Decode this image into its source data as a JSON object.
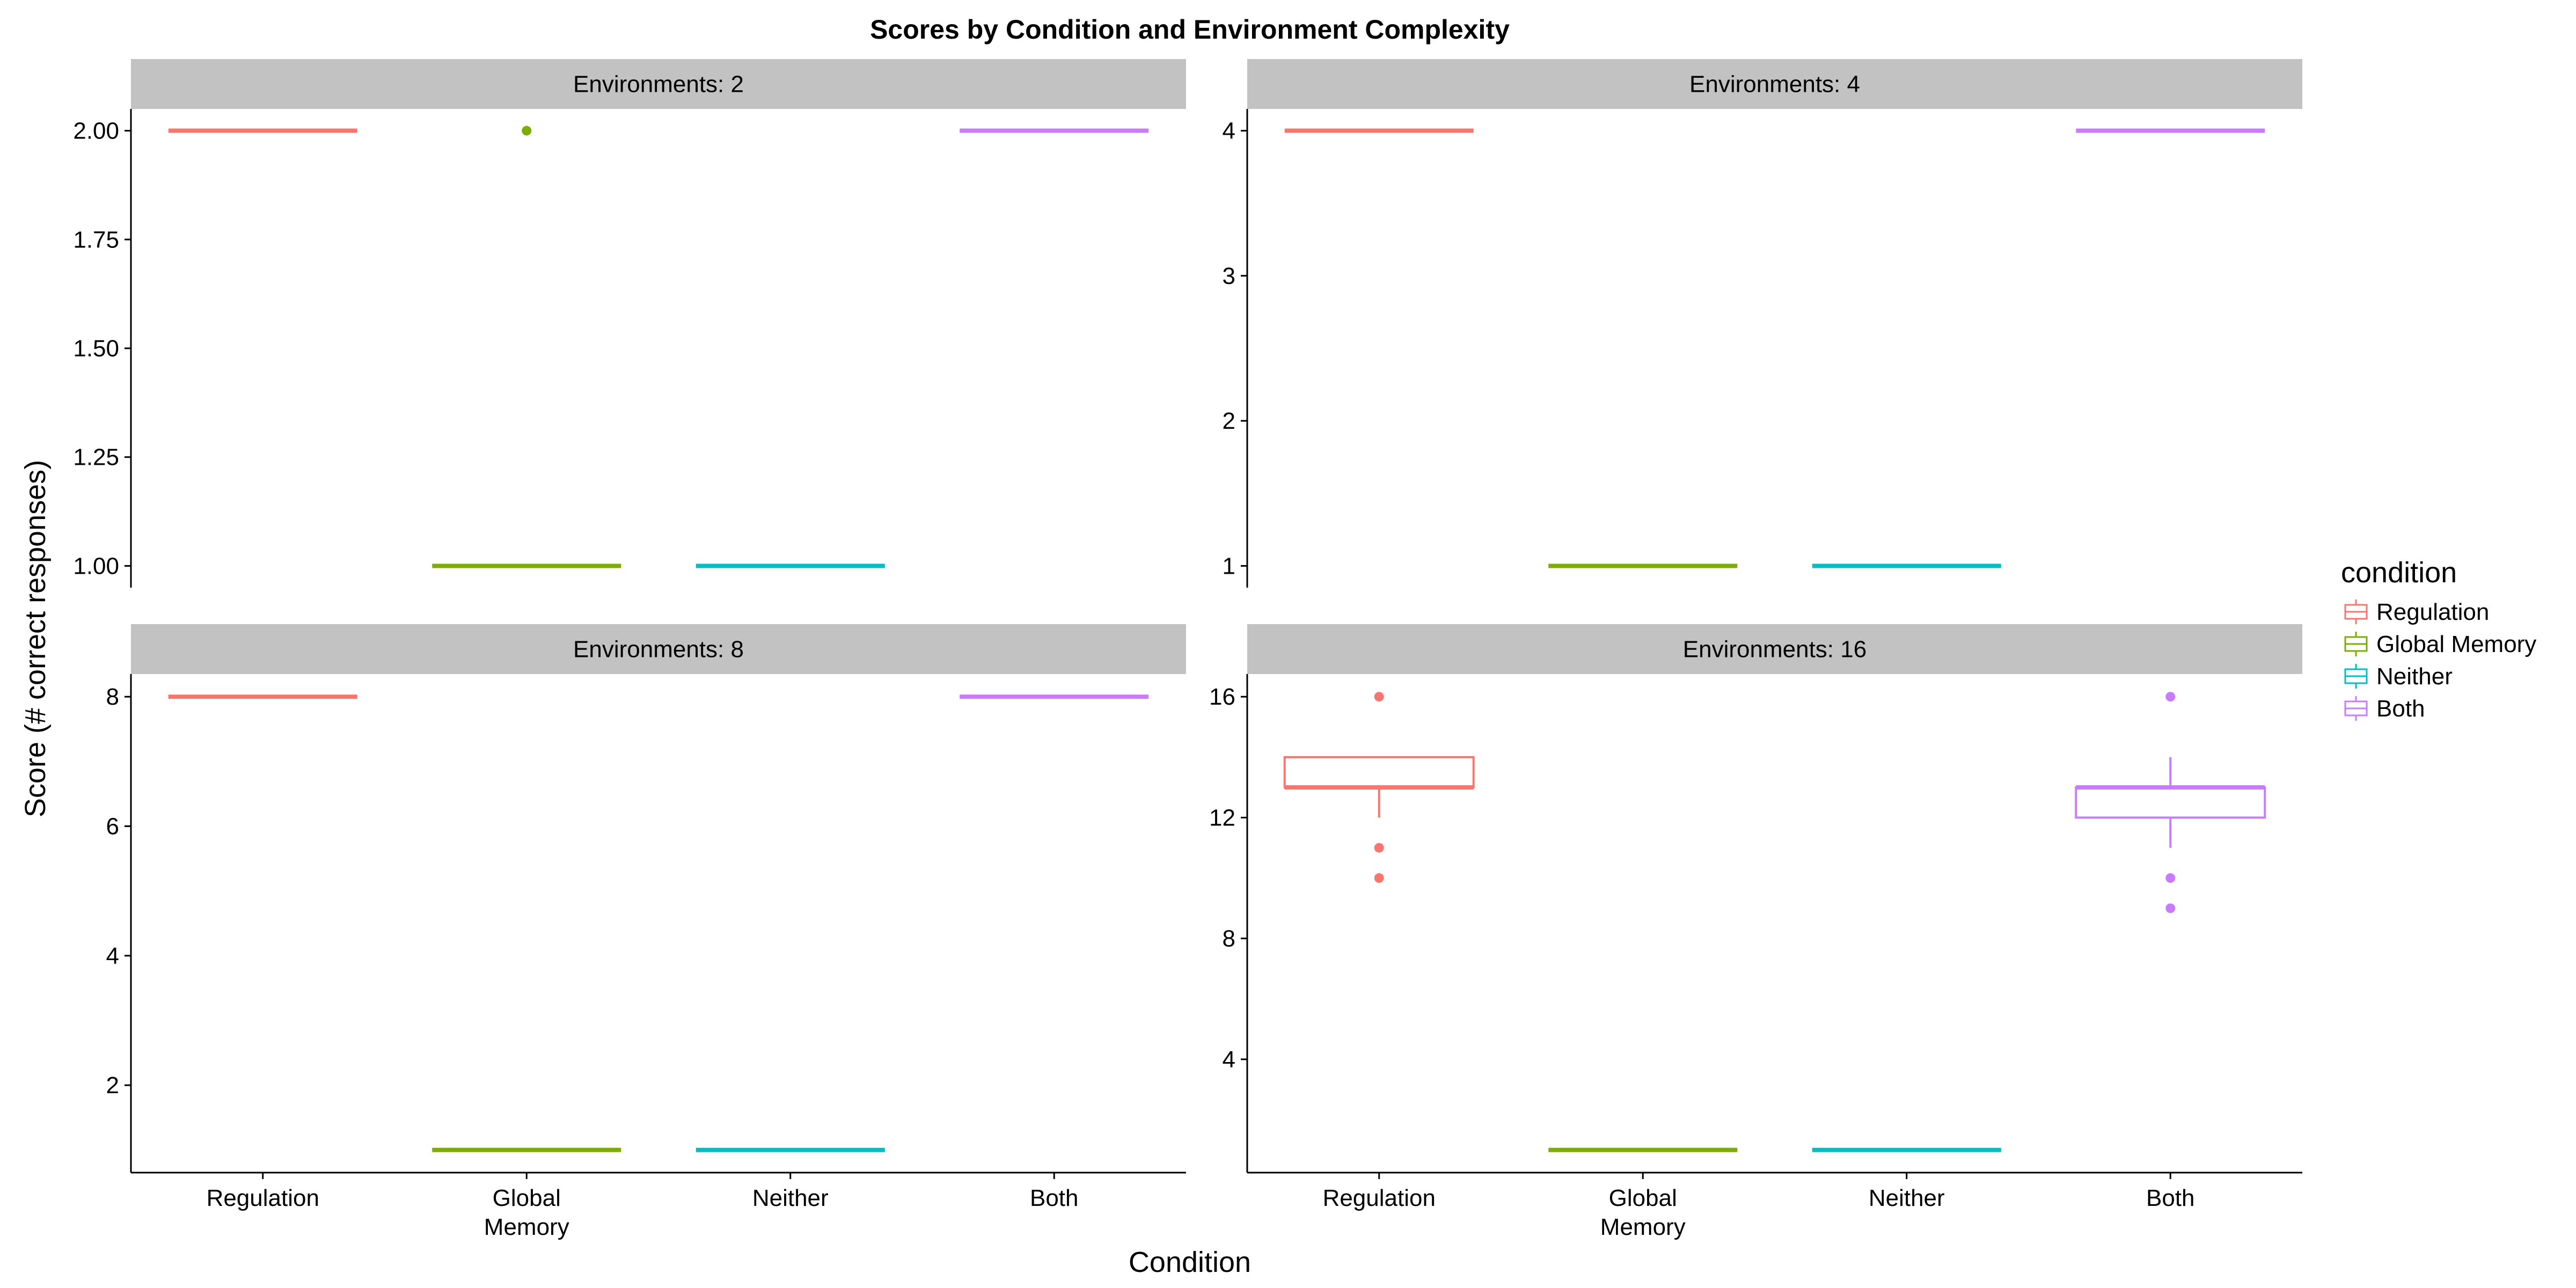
{
  "chart_data": {
    "type": "boxplot",
    "title": "Scores by Condition and Environment Complexity",
    "xlabel": "Condition",
    "ylabel": "Score (# correct responses)",
    "categories": [
      "Regulation",
      "Global\nMemory",
      "Neither",
      "Both"
    ],
    "facet_prefix": "Environments: ",
    "legend": {
      "title": "condition",
      "position": "right",
      "entries": [
        {
          "label": "Regulation",
          "color": "#F8766D"
        },
        {
          "label": "Global Memory",
          "color": "#7CAE00"
        },
        {
          "label": "Neither",
          "color": "#00BFC4"
        },
        {
          "label": "Both",
          "color": "#C77CFF"
        }
      ]
    },
    "colors": [
      "#F8766D",
      "#7CAE00",
      "#00BFC4",
      "#C77CFF"
    ],
    "panels": [
      {
        "strip": "Environments: 2",
        "ylim": [
          0.95,
          2.05
        ],
        "yticks": [
          1.0,
          1.25,
          1.5,
          1.75,
          2.0
        ],
        "tick_format": "fixed2",
        "boxes": [
          {
            "category": "Regulation",
            "q1": 2,
            "median": 2,
            "q3": 2,
            "whisker_low": 2,
            "whisker_high": 2,
            "outliers": []
          },
          {
            "category": "Global Memory",
            "q1": 1,
            "median": 1,
            "q3": 1,
            "whisker_low": 1,
            "whisker_high": 1,
            "outliers": [
              2
            ]
          },
          {
            "category": "Neither",
            "q1": 1,
            "median": 1,
            "q3": 1,
            "whisker_low": 1,
            "whisker_high": 1,
            "outliers": []
          },
          {
            "category": "Both",
            "q1": 2,
            "median": 2,
            "q3": 2,
            "whisker_low": 2,
            "whisker_high": 2,
            "outliers": []
          }
        ]
      },
      {
        "strip": "Environments: 4",
        "ylim": [
          0.85,
          4.15
        ],
        "yticks": [
          1,
          2,
          3,
          4
        ],
        "tick_format": "int",
        "boxes": [
          {
            "category": "Regulation",
            "q1": 4,
            "median": 4,
            "q3": 4,
            "whisker_low": 4,
            "whisker_high": 4,
            "outliers": []
          },
          {
            "category": "Global Memory",
            "q1": 1,
            "median": 1,
            "q3": 1,
            "whisker_low": 1,
            "whisker_high": 1,
            "outliers": []
          },
          {
            "category": "Neither",
            "q1": 1,
            "median": 1,
            "q3": 1,
            "whisker_low": 1,
            "whisker_high": 1,
            "outliers": []
          },
          {
            "category": "Both",
            "q1": 4,
            "median": 4,
            "q3": 4,
            "whisker_low": 4,
            "whisker_high": 4,
            "outliers": []
          }
        ]
      },
      {
        "strip": "Environments: 8",
        "ylim": [
          0.65,
          8.35
        ],
        "yticks": [
          2,
          4,
          6,
          8
        ],
        "tick_format": "int",
        "boxes": [
          {
            "category": "Regulation",
            "q1": 8,
            "median": 8,
            "q3": 8,
            "whisker_low": 8,
            "whisker_high": 8,
            "outliers": []
          },
          {
            "category": "Global Memory",
            "q1": 1,
            "median": 1,
            "q3": 1,
            "whisker_low": 1,
            "whisker_high": 1,
            "outliers": []
          },
          {
            "category": "Neither",
            "q1": 1,
            "median": 1,
            "q3": 1,
            "whisker_low": 1,
            "whisker_high": 1,
            "outliers": []
          },
          {
            "category": "Both",
            "q1": 8,
            "median": 8,
            "q3": 8,
            "whisker_low": 8,
            "whisker_high": 8,
            "outliers": []
          }
        ]
      },
      {
        "strip": "Environments: 16",
        "ylim": [
          0.25,
          16.75
        ],
        "yticks": [
          4,
          8,
          12,
          16
        ],
        "tick_format": "int",
        "boxes": [
          {
            "category": "Regulation",
            "q1": 13,
            "median": 13,
            "q3": 14,
            "whisker_low": 12,
            "whisker_high": 14,
            "outliers": [
              16,
              11,
              10
            ]
          },
          {
            "category": "Global Memory",
            "q1": 1,
            "median": 1,
            "q3": 1,
            "whisker_low": 1,
            "whisker_high": 1,
            "outliers": []
          },
          {
            "category": "Neither",
            "q1": 1,
            "median": 1,
            "q3": 1,
            "whisker_low": 1,
            "whisker_high": 1,
            "outliers": []
          },
          {
            "category": "Both",
            "q1": 12,
            "median": 13,
            "q3": 13,
            "whisker_low": 11,
            "whisker_high": 14,
            "outliers": [
              16,
              10,
              9
            ]
          }
        ]
      }
    ]
  }
}
